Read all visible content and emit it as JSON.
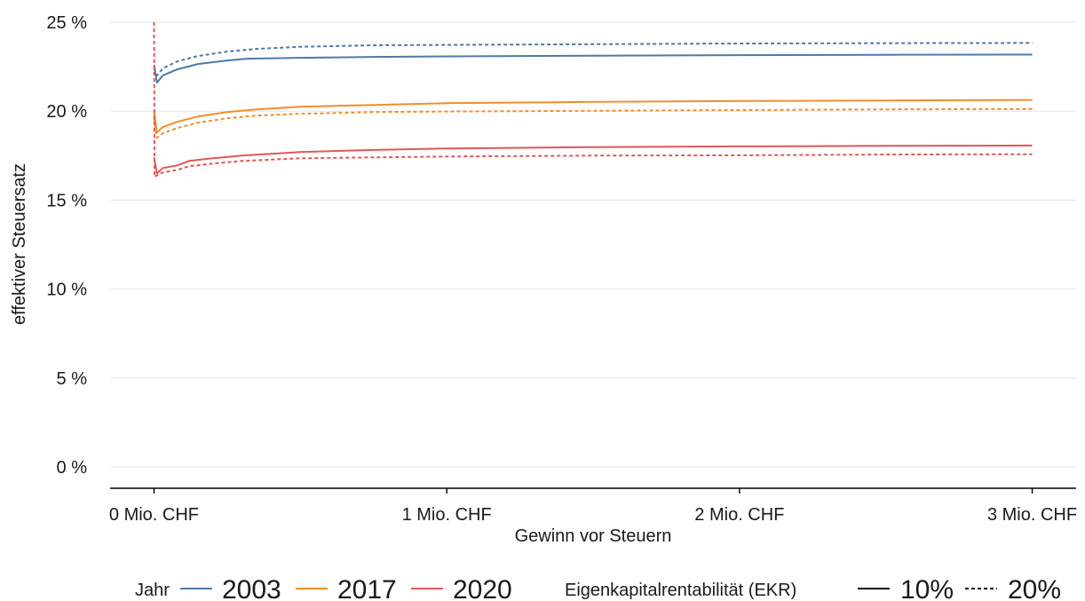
{
  "chart_data": {
    "type": "line",
    "title": "",
    "xlabel": "Gewinn vor Steuern",
    "ylabel": "effektiver Steuersatz",
    "xlim": [
      -0.15,
      3.15
    ],
    "ylim": [
      -1.2,
      25
    ],
    "x_ticks": [
      {
        "value": 0,
        "label": "0 Mio. CHF"
      },
      {
        "value": 1,
        "label": "1 Mio. CHF"
      },
      {
        "value": 2,
        "label": "2 Mio. CHF"
      },
      {
        "value": 3,
        "label": "3 Mio. CHF"
      }
    ],
    "y_ticks": [
      {
        "value": 0,
        "label": "0 %"
      },
      {
        "value": 5,
        "label": "5 %"
      },
      {
        "value": 10,
        "label": "10 %"
      },
      {
        "value": 15,
        "label": "15 %"
      },
      {
        "value": 20,
        "label": "20 %"
      },
      {
        "value": 25,
        "label": "25 %"
      }
    ],
    "grid": "horizontal",
    "legend_position": "bottom",
    "legend": {
      "color_title": "Jahr",
      "color_items": [
        {
          "label": "2003",
          "color": "#4e79a7"
        },
        {
          "label": "2017",
          "color": "#f28e2b"
        },
        {
          "label": "2020",
          "color": "#e15759"
        }
      ],
      "linetype_title": "Eigenkapitalrentabilität (EKR)",
      "linetype_items": [
        {
          "label": "10%",
          "dash": "solid"
        },
        {
          "label": "20%",
          "dash": "dashed"
        }
      ]
    },
    "series": [
      {
        "year": "2003",
        "ekr": "10%",
        "color": "#4e79a7",
        "dash": "solid",
        "points": [
          [
            0,
            22.6
          ],
          [
            0.01,
            21.6
          ],
          [
            0.03,
            22.0
          ],
          [
            0.08,
            22.35
          ],
          [
            0.15,
            22.65
          ],
          [
            0.25,
            22.85
          ],
          [
            0.32,
            22.95
          ],
          [
            0.5,
            23.0
          ],
          [
            0.75,
            23.05
          ],
          [
            1,
            23.08
          ],
          [
            1.5,
            23.12
          ],
          [
            2,
            23.15
          ],
          [
            2.5,
            23.17
          ],
          [
            3,
            23.18
          ]
        ]
      },
      {
        "year": "2003",
        "ekr": "20%",
        "color": "#4e79a7",
        "dash": "dashed",
        "points": [
          [
            0,
            22.4
          ],
          [
            0.01,
            22.0
          ],
          [
            0.03,
            22.4
          ],
          [
            0.08,
            22.8
          ],
          [
            0.15,
            23.1
          ],
          [
            0.25,
            23.35
          ],
          [
            0.35,
            23.5
          ],
          [
            0.5,
            23.62
          ],
          [
            0.75,
            23.7
          ],
          [
            1,
            23.72
          ],
          [
            1.5,
            23.76
          ],
          [
            1.75,
            23.78
          ],
          [
            2,
            23.8
          ],
          [
            2.5,
            23.82
          ],
          [
            3,
            23.83
          ]
        ]
      },
      {
        "year": "2017",
        "ekr": "10%",
        "color": "#f28e2b",
        "dash": "solid",
        "points": [
          [
            0,
            20.0
          ],
          [
            0.01,
            18.8
          ],
          [
            0.03,
            19.1
          ],
          [
            0.08,
            19.4
          ],
          [
            0.15,
            19.7
          ],
          [
            0.25,
            19.95
          ],
          [
            0.35,
            20.1
          ],
          [
            0.5,
            20.25
          ],
          [
            0.75,
            20.35
          ],
          [
            1,
            20.45
          ],
          [
            1.5,
            20.52
          ],
          [
            2,
            20.57
          ],
          [
            2.5,
            20.6
          ],
          [
            3,
            20.63
          ]
        ]
      },
      {
        "year": "2017",
        "ekr": "20%",
        "color": "#f28e2b",
        "dash": "dashed",
        "points": [
          [
            0,
            19.6
          ],
          [
            0.01,
            18.5
          ],
          [
            0.03,
            18.75
          ],
          [
            0.08,
            19.05
          ],
          [
            0.15,
            19.35
          ],
          [
            0.25,
            19.6
          ],
          [
            0.35,
            19.75
          ],
          [
            0.5,
            19.85
          ],
          [
            0.75,
            19.95
          ],
          [
            1,
            19.98
          ],
          [
            1.5,
            20.02
          ],
          [
            2,
            20.06
          ],
          [
            2.5,
            20.1
          ],
          [
            3,
            20.12
          ]
        ]
      },
      {
        "year": "2020",
        "ekr": "10%",
        "color": "#e15759",
        "dash": "solid",
        "points": [
          [
            0,
            17.4
          ],
          [
            0.01,
            16.5
          ],
          [
            0.03,
            16.8
          ],
          [
            0.08,
            16.95
          ],
          [
            0.12,
            17.2
          ],
          [
            0.2,
            17.35
          ],
          [
            0.3,
            17.5
          ],
          [
            0.5,
            17.7
          ],
          [
            0.75,
            17.82
          ],
          [
            1,
            17.9
          ],
          [
            1.5,
            17.98
          ],
          [
            2,
            18.02
          ],
          [
            2.5,
            18.05
          ],
          [
            3,
            18.07
          ]
        ]
      },
      {
        "year": "2020",
        "ekr": "20%",
        "color": "#e15759",
        "dash": "dashed",
        "points": [
          [
            0,
            25.0
          ],
          [
            0.002,
            16.3
          ],
          [
            0.01,
            16.4
          ],
          [
            0.03,
            16.55
          ],
          [
            0.08,
            16.7
          ],
          [
            0.12,
            16.9
          ],
          [
            0.2,
            17.05
          ],
          [
            0.3,
            17.2
          ],
          [
            0.5,
            17.35
          ],
          [
            0.75,
            17.4
          ],
          [
            1,
            17.45
          ],
          [
            1.5,
            17.5
          ],
          [
            2,
            17.52
          ],
          [
            2.5,
            17.56
          ],
          [
            3,
            17.58
          ]
        ]
      }
    ]
  }
}
